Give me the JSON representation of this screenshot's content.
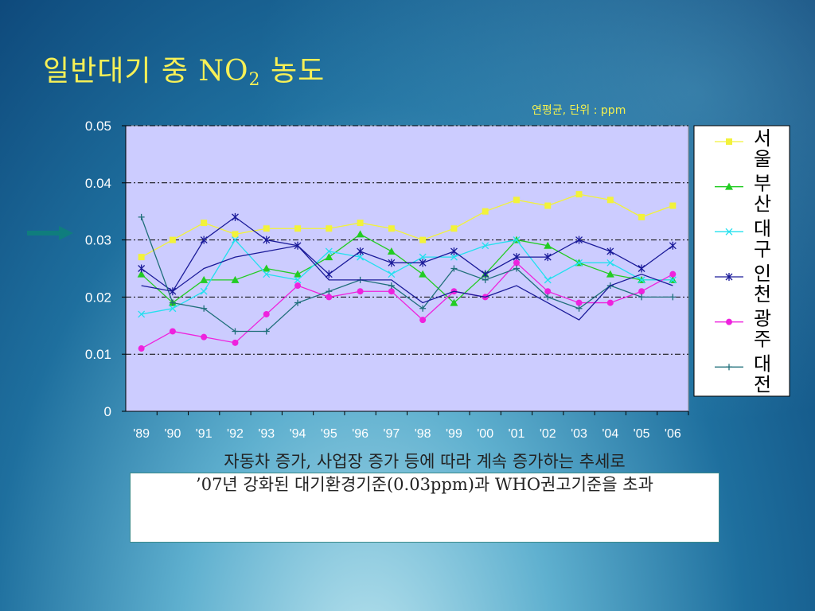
{
  "slide": {
    "title_prefix": "일반대기 중 NO",
    "title_sub": "2",
    "title_suffix": " 농도",
    "unit_note": "연평균,  단위 : ppm",
    "caption_line1": "자동차 증가, 사업장 증가 등에 따라 계속 증가하는 추세로",
    "caption_line2": "’07년 강화된 대기환경기준(0.03ppm)과 WHO권고기준을 초과",
    "arrow_color": "#0f7d7d"
  },
  "chart_data": {
    "type": "line",
    "title": "",
    "xlabel": "",
    "ylabel": "",
    "categories": [
      "'89",
      "'90",
      "'91",
      "'92",
      "'93",
      "'94",
      "'95",
      "'96",
      "'97",
      "'98",
      "'99",
      "'00",
      "'01",
      "'02",
      "'03",
      "'04",
      "'05",
      "'06"
    ],
    "y_ticks": [
      "0",
      "0.01",
      "0.02",
      "0.03",
      "0.04",
      "0.05"
    ],
    "ylim": [
      0,
      0.05
    ],
    "grid": "dash-dot horizontal",
    "legend_position": "right",
    "plot_background": "#ccccff",
    "series": [
      {
        "name": "서울",
        "color": "#f2f23a",
        "marker": "square",
        "values": [
          0.027,
          0.03,
          0.033,
          0.031,
          0.032,
          0.032,
          0.032,
          0.033,
          0.032,
          0.03,
          0.032,
          0.035,
          0.037,
          0.036,
          0.038,
          0.037,
          0.034,
          0.036
        ]
      },
      {
        "name": "부산",
        "color": "#22cc22",
        "marker": "triangle",
        "values": [
          0.024,
          0.019,
          0.023,
          0.023,
          0.025,
          0.024,
          0.027,
          0.031,
          0.028,
          0.024,
          0.019,
          0.024,
          0.03,
          0.029,
          0.026,
          0.024,
          0.023,
          0.023
        ]
      },
      {
        "name": "대구",
        "color": "#22e0ee",
        "marker": "x",
        "values": [
          0.017,
          0.018,
          0.021,
          0.03,
          0.024,
          0.023,
          0.028,
          0.027,
          0.024,
          0.027,
          0.027,
          0.029,
          0.03,
          0.023,
          0.026,
          0.026,
          0.023,
          0.023
        ]
      },
      {
        "name": "인천",
        "color": "#1a1a99",
        "marker": "star",
        "values": [
          0.025,
          0.021,
          0.03,
          0.034,
          0.03,
          0.029,
          0.024,
          0.028,
          0.026,
          0.026,
          0.028,
          0.024,
          0.027,
          0.027,
          0.03,
          0.028,
          0.025,
          0.029
        ]
      },
      {
        "name": "광주",
        "color": "#ee22dd",
        "marker": "circle",
        "values": [
          0.011,
          0.014,
          0.013,
          0.012,
          0.017,
          0.022,
          0.02,
          0.021,
          0.021,
          0.016,
          0.021,
          0.02,
          0.026,
          0.021,
          0.019,
          0.019,
          0.021,
          0.024
        ]
      },
      {
        "name": "대전",
        "color": "#1f6f7a",
        "marker": "plus",
        "values": [
          0.034,
          0.019,
          0.018,
          0.014,
          0.014,
          0.019,
          0.021,
          0.023,
          0.022,
          0.018,
          0.025,
          0.023,
          0.025,
          0.02,
          0.018,
          0.022,
          0.02,
          0.02
        ]
      },
      {
        "name": "",
        "color": "#1a1a99",
        "marker": "none",
        "values": [
          0.022,
          0.021,
          0.025,
          0.027,
          0.028,
          0.029,
          0.023,
          0.023,
          0.023,
          0.019,
          0.021,
          0.02,
          0.022,
          0.019,
          0.016,
          0.022,
          0.024,
          0.022
        ]
      }
    ]
  }
}
